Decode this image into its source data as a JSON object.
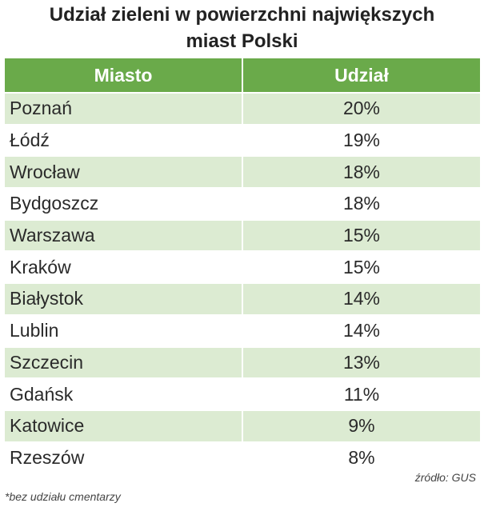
{
  "title_lines": [
    "Udział zieleni w powierzchni największych",
    "miast Polski"
  ],
  "colors": {
    "header_bg": "#6aaa4a",
    "stripe_bg": "#dcebd2"
  },
  "chart_data": {
    "type": "table",
    "columns": [
      "Miasto",
      "Udział"
    ],
    "rows": [
      {
        "city": "Poznań",
        "share": "20%"
      },
      {
        "city": "Łódź",
        "share": "19%"
      },
      {
        "city": "Wrocław",
        "share": "18%"
      },
      {
        "city": "Bydgoszcz",
        "share": "18%"
      },
      {
        "city": "Warszawa",
        "share": "15%"
      },
      {
        "city": "Kraków",
        "share": "15%"
      },
      {
        "city": "Białystok",
        "share": "14%"
      },
      {
        "city": "Lublin",
        "share": "14%"
      },
      {
        "city": "Szczecin",
        "share": "13%"
      },
      {
        "city": "Gdańsk",
        "share": "11%"
      },
      {
        "city": "Katowice",
        "share": "9%"
      },
      {
        "city": "Rzeszów",
        "share": "8%"
      }
    ]
  },
  "source": "źródło: GUS",
  "footnote": "*bez udziału cmentarzy"
}
